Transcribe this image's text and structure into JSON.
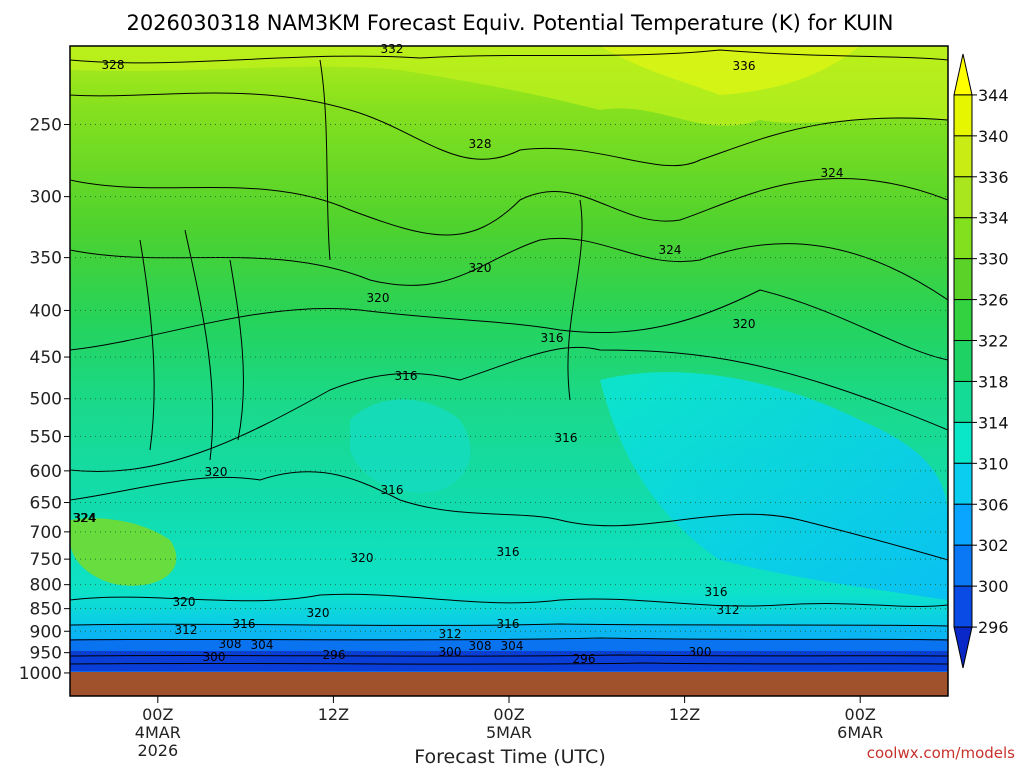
{
  "chart_data": {
    "type": "heatmap",
    "title": "2026030318 NAM3KM Forecast Equiv. Potential Temperature (K) for KUIN",
    "xlabel": "Forecast Time (UTC)",
    "credit": "coolwx.com/models",
    "y_axis": {
      "ticks": [
        "250",
        "300",
        "350",
        "400",
        "450",
        "500",
        "550",
        "600",
        "650",
        "700",
        "750",
        "800",
        "850",
        "900",
        "950",
        "1000"
      ],
      "values": [
        250,
        300,
        350,
        400,
        450,
        500,
        550,
        600,
        650,
        700,
        750,
        800,
        850,
        900,
        950,
        1000
      ],
      "scale": "log",
      "inverted": true,
      "grid": "dotted"
    },
    "x_axis": {
      "ticks": [
        {
          "hour": 6,
          "lines": [
            "00Z",
            "4MAR",
            "2026"
          ]
        },
        {
          "hour": 18,
          "lines": [
            "12Z"
          ]
        },
        {
          "hour": 30,
          "lines": [
            "00Z",
            "5MAR"
          ]
        },
        {
          "hour": 42,
          "lines": [
            "12Z"
          ]
        },
        {
          "hour": 54,
          "lines": [
            "00Z",
            "6MAR"
          ]
        }
      ],
      "range_hours": [
        0,
        60
      ]
    },
    "colorbar": {
      "labels": [
        "344",
        "340",
        "336",
        "334",
        "330",
        "326",
        "322",
        "318",
        "314",
        "310",
        "306",
        "302",
        "300",
        "296"
      ],
      "colors": [
        "#ffff00",
        "#e6f500",
        "#c8ec14",
        "#aae61e",
        "#82e01e",
        "#5ad228",
        "#32d240",
        "#1ed264",
        "#14dc96",
        "#0ae6c8",
        "#0acdf0",
        "#0aa5ff",
        "#0a78f5",
        "#0a4be6",
        "#0a28c8"
      ]
    },
    "contour_labels": [
      "328",
      "332",
      "336",
      "328",
      "324",
      "324",
      "320",
      "324",
      "320",
      "320",
      "316",
      "316",
      "320",
      "316",
      "316",
      "324",
      "320",
      "316",
      "320",
      "316",
      "312",
      "320",
      "316",
      "312",
      "308",
      "304",
      "312",
      "308",
      "304",
      "316",
      "300",
      "296",
      "300",
      "296",
      "300"
    ],
    "ground_color": "#a0522d"
  }
}
